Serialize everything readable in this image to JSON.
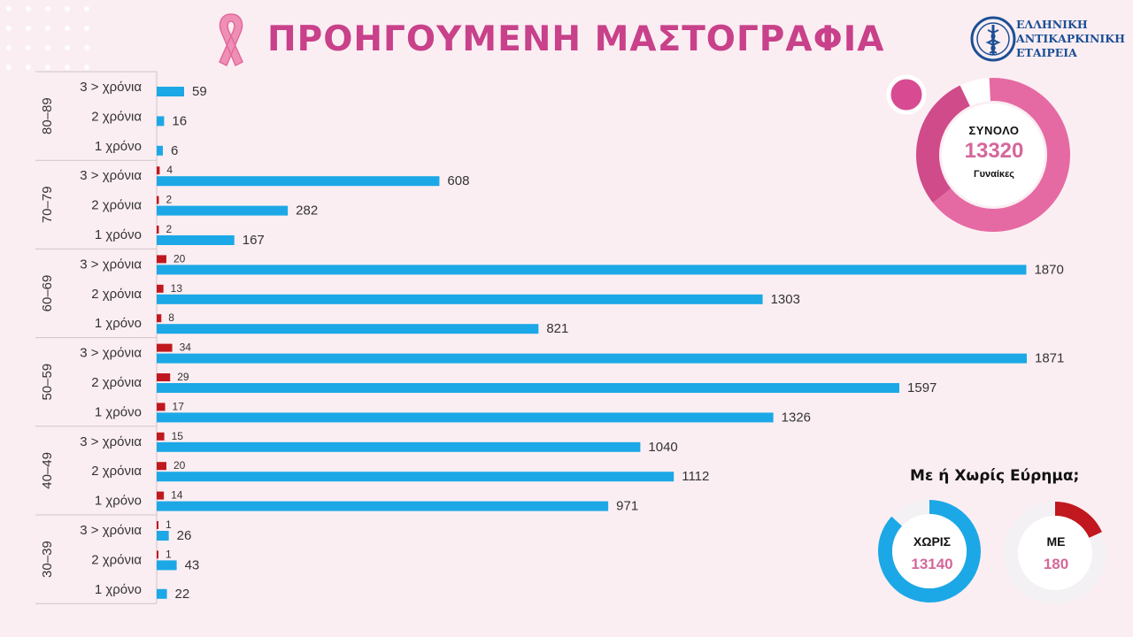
{
  "page": {
    "title": "ΠΡΟΗΓΟΥΜΕΝΗ ΜΑΣΤΟΓΡΑΦΙΑ",
    "logo_lines": [
      "ΕΛΛΗΝΙΚΗ",
      "ΑΝΤΙΚΑΡΚΙΝΙΚΗ",
      "ΕΤΑΙΡΕΙΑ"
    ],
    "logo_icon": "hellenic-cancer-society-emblem",
    "ribbon_icon": "pink-ribbon"
  },
  "total": {
    "label": "ΣΥΝΟΛΟ",
    "value": "13320",
    "unit": "Γυναίκες"
  },
  "findings": {
    "question": "Με ή Χωρίς Εύρημα;",
    "without_label": "ΧΩΡΙΣ",
    "without_value": "13140",
    "with_label": "ΜΕ",
    "with_value": "180"
  },
  "colors": {
    "accent_pink": "#c8418a",
    "without_finding": "#1ca8e6",
    "with_finding": "#c0181e",
    "background": "#fbeef2"
  },
  "chart_data": {
    "type": "bar",
    "orientation": "horizontal",
    "groups": [
      {
        "name": "80–89",
        "rows": [
          {
            "category": "3 > χρόνια",
            "without": 59,
            "with": null
          },
          {
            "category": "2 χρόνια",
            "without": 16,
            "with": null
          },
          {
            "category": "1 χρόνο",
            "without": 6,
            "with": null
          }
        ]
      },
      {
        "name": "70–79",
        "rows": [
          {
            "category": "3 > χρόνια",
            "without": 608,
            "with": 4
          },
          {
            "category": "2 χρόνια",
            "without": 282,
            "with": 2
          },
          {
            "category": "1 χρόνο",
            "without": 167,
            "with": 2
          }
        ]
      },
      {
        "name": "60–69",
        "rows": [
          {
            "category": "3 > χρόνια",
            "without": 1870,
            "with": 20
          },
          {
            "category": "2 χρόνια",
            "without": 1303,
            "with": 13
          },
          {
            "category": "1 χρόνο",
            "without": 821,
            "with": 8
          }
        ]
      },
      {
        "name": "50–59",
        "rows": [
          {
            "category": "3 > χρόνια",
            "without": 1871,
            "with": 34
          },
          {
            "category": "2 χρόνια",
            "without": 1597,
            "with": 29
          },
          {
            "category": "1 χρόνο",
            "without": 1326,
            "with": 17
          }
        ]
      },
      {
        "name": "40–49",
        "rows": [
          {
            "category": "3 > χρόνια",
            "without": 1040,
            "with": 15
          },
          {
            "category": "2 χρόνια",
            "without": 1112,
            "with": 20
          },
          {
            "category": "1 χρόνο",
            "without": 971,
            "with": 14
          }
        ]
      },
      {
        "name": "30–39",
        "rows": [
          {
            "category": "3 > χρόνια",
            "without": 26,
            "with": 1
          },
          {
            "category": "2 χρόνια",
            "without": 43,
            "with": 1
          },
          {
            "category": "1 χρόνο",
            "without": 22,
            "with": null
          }
        ]
      }
    ],
    "xlim": [
      0,
      1871
    ],
    "grid": false,
    "legend": "none"
  }
}
